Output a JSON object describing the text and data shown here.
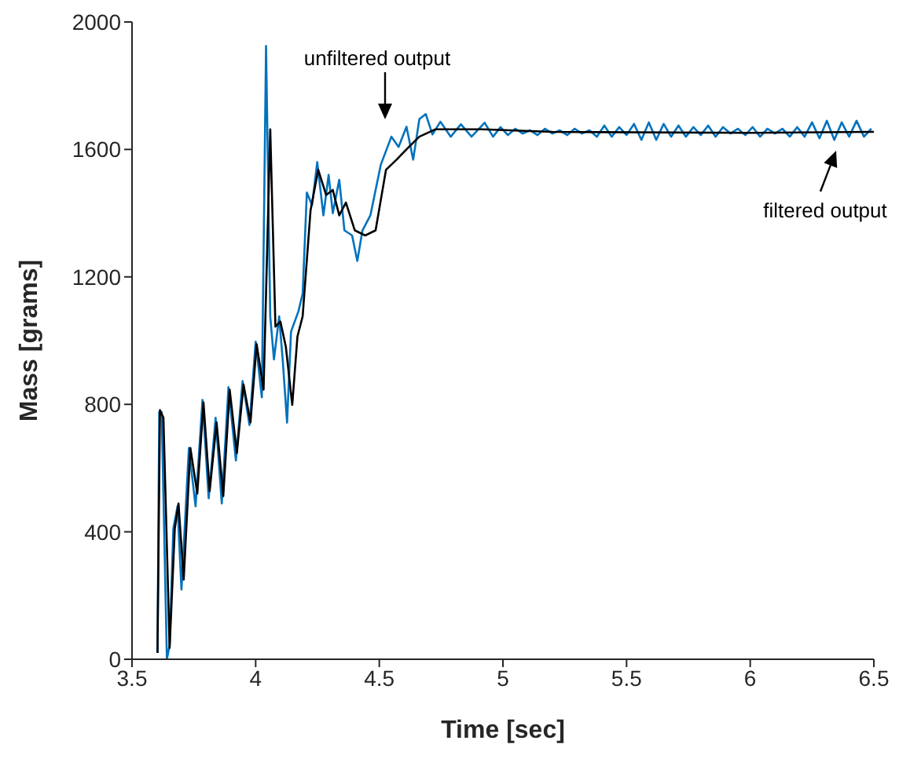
{
  "chart_data": {
    "type": "line",
    "xlabel": "Time [sec]",
    "ylabel": "Mass [grams]",
    "xlim": [
      3.5,
      6.5
    ],
    "xticks": [
      3.5,
      4,
      4.5,
      5,
      5.5,
      6,
      6.5
    ],
    "ylim": [
      0,
      2000
    ],
    "yticks": [
      0,
      400,
      800,
      1200,
      1600,
      2000
    ],
    "grid": false,
    "legend": false,
    "marker": "none",
    "line_style": "solid",
    "annotations": [
      "unfiltered output",
      "filtered output"
    ],
    "series": [
      {
        "color": "#0072bd",
        "x": [
          3.603,
          3.61,
          3.62,
          3.641,
          3.652,
          3.667,
          3.684,
          3.7,
          3.73,
          3.757,
          3.785,
          3.81,
          3.838,
          3.863,
          3.89,
          3.92,
          3.947,
          3.975,
          4.0,
          4.025,
          4.042,
          4.059,
          4.074,
          4.095,
          4.11,
          4.127,
          4.143,
          4.173,
          4.19,
          4.207,
          4.228,
          4.249,
          4.274,
          4.295,
          4.312,
          4.338,
          4.359,
          4.39,
          4.411,
          4.432,
          4.464,
          4.506,
          4.549,
          4.578,
          4.61,
          4.637,
          4.662,
          4.688,
          4.715,
          4.747,
          4.789,
          4.83,
          4.873,
          4.926,
          4.96,
          4.99,
          5.02,
          5.05,
          5.08,
          5.11,
          5.14,
          5.17,
          5.2,
          5.23,
          5.26,
          5.29,
          5.32,
          5.35,
          5.38,
          5.41,
          5.44,
          5.47,
          5.5,
          5.53,
          5.56,
          5.59,
          5.62,
          5.65,
          5.68,
          5.71,
          5.74,
          5.77,
          5.8,
          5.83,
          5.86,
          5.89,
          5.92,
          5.95,
          5.98,
          6.01,
          6.04,
          6.07,
          6.1,
          6.13,
          6.16,
          6.19,
          6.22,
          6.25,
          6.28,
          6.31,
          6.34,
          6.37,
          6.4,
          6.43,
          6.46,
          6.49
        ],
        "values": [
          20,
          775,
          775,
          0,
          44,
          410,
          480,
          219,
          663,
          480,
          814,
          505,
          758,
          489,
          854,
          624,
          873,
          735,
          997,
          822,
          1925,
          1076,
          941,
          1076,
          933,
          743,
          1028,
          1092,
          1147,
          1465,
          1425,
          1560,
          1393,
          1520,
          1400,
          1505,
          1346,
          1330,
          1250,
          1346,
          1393,
          1552,
          1640,
          1608,
          1671,
          1568,
          1695,
          1711,
          1647,
          1687,
          1640,
          1679,
          1640,
          1684,
          1640,
          1670,
          1645,
          1665,
          1650,
          1660,
          1645,
          1665,
          1650,
          1660,
          1645,
          1665,
          1650,
          1660,
          1640,
          1675,
          1640,
          1670,
          1645,
          1680,
          1630,
          1685,
          1630,
          1680,
          1640,
          1675,
          1640,
          1670,
          1645,
          1675,
          1640,
          1670,
          1650,
          1665,
          1645,
          1670,
          1640,
          1665,
          1650,
          1665,
          1640,
          1670,
          1640,
          1685,
          1635,
          1690,
          1630,
          1685,
          1640,
          1690,
          1640,
          1665
        ]
      },
      {
        "color": "#000000",
        "x": [
          3.603,
          3.613,
          3.627,
          3.652,
          3.673,
          3.688,
          3.709,
          3.736,
          3.764,
          3.789,
          3.814,
          3.842,
          3.869,
          3.895,
          3.924,
          3.951,
          3.979,
          4.004,
          4.032,
          4.059,
          4.08,
          4.1,
          4.122,
          4.148,
          4.169,
          4.19,
          4.222,
          4.253,
          4.285,
          4.312,
          4.338,
          4.365,
          4.401,
          4.443,
          4.485,
          4.527,
          4.57,
          4.62,
          4.662,
          4.726,
          4.83,
          4.916,
          5.2,
          6.0,
          6.5
        ],
        "values": [
          20,
          782,
          758,
          36,
          410,
          489,
          250,
          663,
          520,
          806,
          528,
          743,
          512,
          846,
          647,
          862,
          743,
          989,
          846,
          1663,
          1044,
          1060,
          981,
          798,
          1013,
          1076,
          1409,
          1536,
          1457,
          1473,
          1393,
          1433,
          1346,
          1330,
          1346,
          1536,
          1568,
          1608,
          1640,
          1663,
          1663,
          1663,
          1655,
          1652,
          1655
        ]
      }
    ]
  }
}
